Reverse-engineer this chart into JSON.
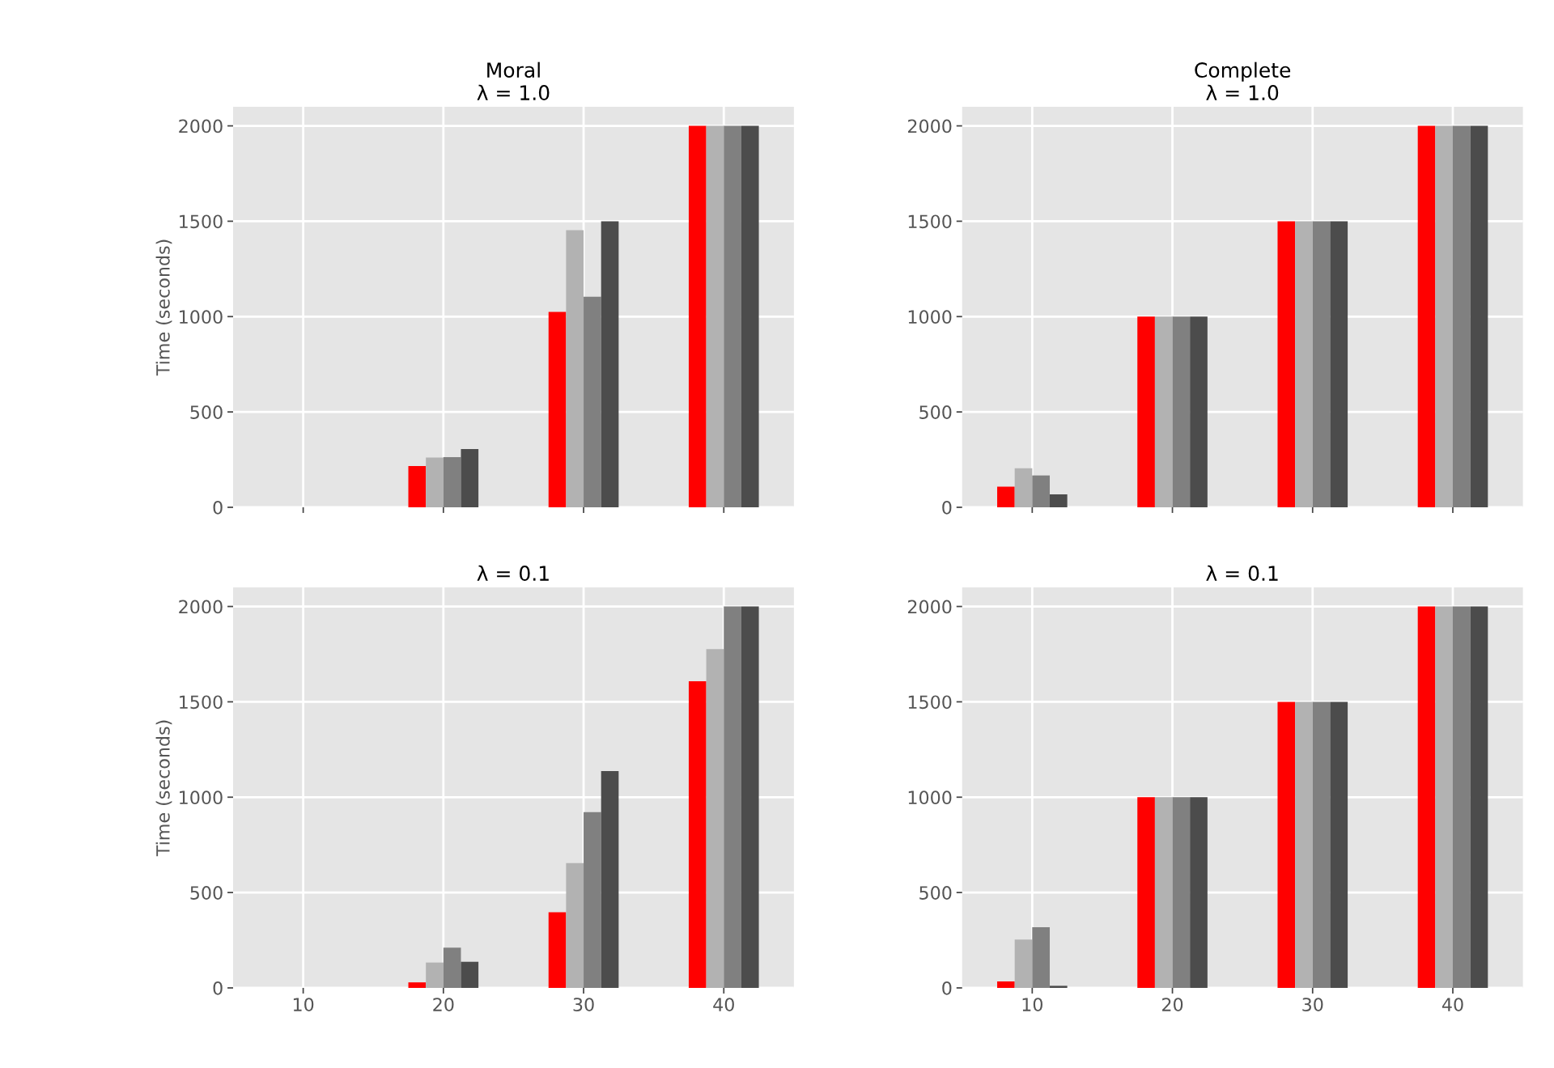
{
  "chart_data": [
    {
      "type": "bar",
      "title": "Moral\nλ = 1.0",
      "ylabel": "Time (seconds)",
      "x": [
        10,
        20,
        30,
        40
      ],
      "xlim": [
        5,
        45
      ],
      "xticks": [
        10,
        20,
        30,
        40
      ],
      "ylim": [
        0,
        2100
      ],
      "yticks": [
        0,
        500,
        1000,
        1500,
        2000
      ],
      "grid": true,
      "tick_labels": "y",
      "series": [
        {
          "color": "#ff0000",
          "values": [
            0,
            216,
            1025,
            2000
          ]
        },
        {
          "color": "#b2b2b2",
          "values": [
            0,
            261,
            1453,
            2000
          ]
        },
        {
          "color": "#808080",
          "values": [
            0,
            263,
            1104,
            2000
          ]
        },
        {
          "color": "#4c4c4c",
          "values": [
            0,
            305,
            1500,
            2000
          ]
        }
      ]
    },
    {
      "type": "bar",
      "title": "Complete\nλ = 1.0",
      "x": [
        10,
        20,
        30,
        40
      ],
      "xlim": [
        5,
        45
      ],
      "xticks": [
        10,
        20,
        30,
        40
      ],
      "ylim": [
        0,
        2100
      ],
      "yticks": [
        0,
        500,
        1000,
        1500,
        2000
      ],
      "grid": true,
      "tick_labels": "y",
      "series": [
        {
          "color": "#ff0000",
          "values": [
            108,
            1000,
            1500,
            2000
          ]
        },
        {
          "color": "#b2b2b2",
          "values": [
            205,
            1000,
            1500,
            2000
          ]
        },
        {
          "color": "#808080",
          "values": [
            167,
            1000,
            1500,
            2000
          ]
        },
        {
          "color": "#4c4c4c",
          "values": [
            68,
            1000,
            1500,
            2000
          ]
        }
      ]
    },
    {
      "type": "bar",
      "title": "λ = 0.1",
      "ylabel": "Time (seconds)",
      "x": [
        10,
        20,
        30,
        40
      ],
      "xlim": [
        5,
        45
      ],
      "xticks": [
        10,
        20,
        30,
        40
      ],
      "ylim": [
        0,
        2100
      ],
      "yticks": [
        0,
        500,
        1000,
        1500,
        2000
      ],
      "grid": true,
      "series": [
        {
          "color": "#ff0000",
          "values": [
            0,
            29,
            397,
            1608
          ]
        },
        {
          "color": "#b2b2b2",
          "values": [
            0,
            133,
            654,
            1776
          ]
        },
        {
          "color": "#808080",
          "values": [
            0,
            211,
            922,
            2000
          ]
        },
        {
          "color": "#4c4c4c",
          "values": [
            0,
            137,
            1137,
            2000
          ]
        }
      ]
    },
    {
      "type": "bar",
      "title": "λ = 0.1",
      "x": [
        10,
        20,
        30,
        40
      ],
      "xlim": [
        5,
        45
      ],
      "xticks": [
        10,
        20,
        30,
        40
      ],
      "ylim": [
        0,
        2100
      ],
      "yticks": [
        0,
        500,
        1000,
        1500,
        2000
      ],
      "grid": true,
      "series": [
        {
          "color": "#ff0000",
          "values": [
            34,
            1000,
            1500,
            2000
          ]
        },
        {
          "color": "#b2b2b2",
          "values": [
            253,
            1000,
            1500,
            2000
          ]
        },
        {
          "color": "#808080",
          "values": [
            318,
            1000,
            1500,
            2000
          ]
        },
        {
          "color": "#4c4c4c",
          "values": [
            11,
            1000,
            1500,
            2000
          ]
        }
      ]
    }
  ]
}
